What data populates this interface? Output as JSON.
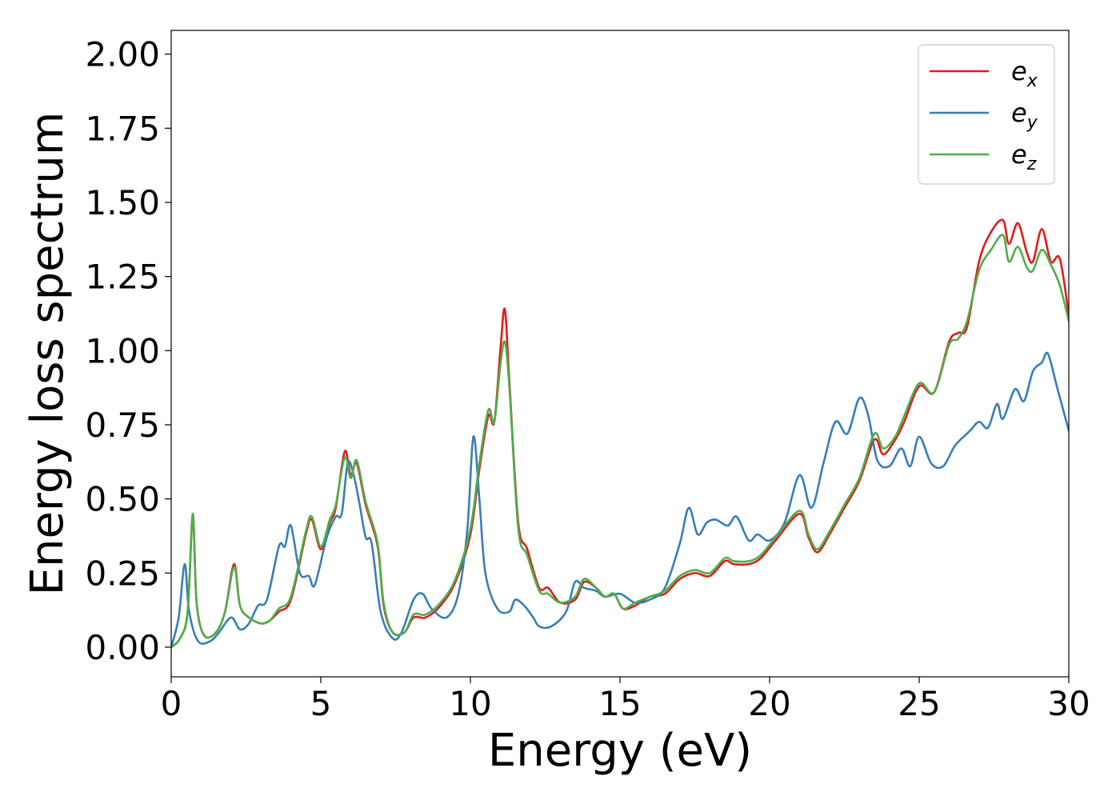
{
  "chart_data": {
    "type": "line",
    "title": "",
    "xlabel": "Energy (eV)",
    "ylabel": "Energy loss spectrum",
    "xlim": [
      0,
      30
    ],
    "ylim": [
      -0.1,
      2.08
    ],
    "x_ticks": [
      "0",
      "5",
      "10",
      "15",
      "20",
      "25",
      "30"
    ],
    "y_ticks": [
      "0.00",
      "0.25",
      "0.50",
      "0.75",
      "1.00",
      "1.25",
      "1.50",
      "1.75",
      "2.00"
    ],
    "grid": false,
    "legend_position": "top-right",
    "series": [
      {
        "name": "e",
        "sub": "x",
        "color": "#e41a1c",
        "points": [
          [
            0,
            0
          ],
          [
            0.3,
            0.03
          ],
          [
            0.55,
            0.12
          ],
          [
            0.72,
            0.44
          ],
          [
            0.85,
            0.15
          ],
          [
            1.1,
            0.04
          ],
          [
            1.5,
            0.05
          ],
          [
            1.8,
            0.12
          ],
          [
            2.1,
            0.28
          ],
          [
            2.3,
            0.14
          ],
          [
            2.6,
            0.1
          ],
          [
            3,
            0.08
          ],
          [
            3.3,
            0.09
          ],
          [
            3.6,
            0.12
          ],
          [
            4,
            0.16
          ],
          [
            4.5,
            0.38
          ],
          [
            4.7,
            0.43
          ],
          [
            5,
            0.33
          ],
          [
            5.3,
            0.42
          ],
          [
            5.5,
            0.47
          ],
          [
            5.8,
            0.66
          ],
          [
            6,
            0.58
          ],
          [
            6.2,
            0.62
          ],
          [
            6.5,
            0.48
          ],
          [
            6.9,
            0.34
          ],
          [
            7.1,
            0.14
          ],
          [
            7.4,
            0.05
          ],
          [
            7.8,
            0.05
          ],
          [
            8.1,
            0.1
          ],
          [
            8.5,
            0.1
          ],
          [
            9,
            0.14
          ],
          [
            9.5,
            0.22
          ],
          [
            10,
            0.38
          ],
          [
            10.3,
            0.6
          ],
          [
            10.6,
            0.78
          ],
          [
            10.8,
            0.76
          ],
          [
            11,
            1.0
          ],
          [
            11.15,
            1.14
          ],
          [
            11.3,
            0.9
          ],
          [
            11.6,
            0.42
          ],
          [
            11.9,
            0.33
          ],
          [
            12.3,
            0.2
          ],
          [
            12.6,
            0.2
          ],
          [
            13,
            0.15
          ],
          [
            13.5,
            0.16
          ],
          [
            13.8,
            0.22
          ],
          [
            14.2,
            0.2
          ],
          [
            14.5,
            0.17
          ],
          [
            14.8,
            0.18
          ],
          [
            15.1,
            0.13
          ],
          [
            15.5,
            0.14
          ],
          [
            16,
            0.17
          ],
          [
            16.5,
            0.18
          ],
          [
            17,
            0.23
          ],
          [
            17.5,
            0.25
          ],
          [
            18,
            0.24
          ],
          [
            18.5,
            0.29
          ],
          [
            18.8,
            0.28
          ],
          [
            19.3,
            0.28
          ],
          [
            19.7,
            0.3
          ],
          [
            20.2,
            0.36
          ],
          [
            21,
            0.45
          ],
          [
            21.3,
            0.37
          ],
          [
            21.6,
            0.32
          ],
          [
            22,
            0.38
          ],
          [
            22.5,
            0.47
          ],
          [
            23,
            0.56
          ],
          [
            23.5,
            0.7
          ],
          [
            23.8,
            0.65
          ],
          [
            24.2,
            0.7
          ],
          [
            24.5,
            0.76
          ],
          [
            25,
            0.88
          ],
          [
            25.5,
            0.86
          ],
          [
            26,
            1.03
          ],
          [
            26.3,
            1.06
          ],
          [
            26.6,
            1.08
          ],
          [
            27,
            1.3
          ],
          [
            27.4,
            1.4
          ],
          [
            27.8,
            1.44
          ],
          [
            28,
            1.36
          ],
          [
            28.3,
            1.43
          ],
          [
            28.6,
            1.33
          ],
          [
            28.8,
            1.3
          ],
          [
            29.1,
            1.41
          ],
          [
            29.4,
            1.3
          ],
          [
            29.7,
            1.31
          ],
          [
            30,
            1.12
          ]
        ]
      },
      {
        "name": "e",
        "sub": "y",
        "color": "#377eb8",
        "points": [
          [
            0,
            0
          ],
          [
            0.25,
            0.1
          ],
          [
            0.45,
            0.28
          ],
          [
            0.6,
            0.12
          ],
          [
            0.9,
            0.02
          ],
          [
            1.3,
            0.02
          ],
          [
            1.6,
            0.05
          ],
          [
            2,
            0.1
          ],
          [
            2.3,
            0.06
          ],
          [
            2.6,
            0.08
          ],
          [
            2.9,
            0.14
          ],
          [
            3.2,
            0.16
          ],
          [
            3.6,
            0.34
          ],
          [
            3.8,
            0.34
          ],
          [
            4,
            0.41
          ],
          [
            4.3,
            0.25
          ],
          [
            4.6,
            0.24
          ],
          [
            4.8,
            0.21
          ],
          [
            5.2,
            0.37
          ],
          [
            5.5,
            0.44
          ],
          [
            5.7,
            0.45
          ],
          [
            5.9,
            0.62
          ],
          [
            6.1,
            0.58
          ],
          [
            6.3,
            0.48
          ],
          [
            6.5,
            0.37
          ],
          [
            6.7,
            0.35
          ],
          [
            7,
            0.12
          ],
          [
            7.4,
            0.03
          ],
          [
            7.7,
            0.05
          ],
          [
            8.1,
            0.16
          ],
          [
            8.4,
            0.18
          ],
          [
            8.7,
            0.13
          ],
          [
            9.2,
            0.1
          ],
          [
            9.6,
            0.18
          ],
          [
            9.9,
            0.4
          ],
          [
            10.1,
            0.71
          ],
          [
            10.3,
            0.5
          ],
          [
            10.5,
            0.25
          ],
          [
            10.9,
            0.13
          ],
          [
            11.3,
            0.12
          ],
          [
            11.5,
            0.16
          ],
          [
            11.8,
            0.14
          ],
          [
            12.1,
            0.1
          ],
          [
            12.3,
            0.07
          ],
          [
            12.7,
            0.07
          ],
          [
            13.2,
            0.12
          ],
          [
            13.5,
            0.22
          ],
          [
            13.8,
            0.2
          ],
          [
            14.2,
            0.19
          ],
          [
            14.5,
            0.17
          ],
          [
            15,
            0.18
          ],
          [
            15.5,
            0.15
          ],
          [
            16,
            0.16
          ],
          [
            16.5,
            0.2
          ],
          [
            17,
            0.35
          ],
          [
            17.3,
            0.47
          ],
          [
            17.6,
            0.38
          ],
          [
            17.9,
            0.42
          ],
          [
            18.2,
            0.43
          ],
          [
            18.6,
            0.41
          ],
          [
            18.9,
            0.44
          ],
          [
            19.3,
            0.36
          ],
          [
            19.6,
            0.38
          ],
          [
            20,
            0.36
          ],
          [
            20.5,
            0.42
          ],
          [
            21,
            0.58
          ],
          [
            21.4,
            0.47
          ],
          [
            21.8,
            0.62
          ],
          [
            22.2,
            0.76
          ],
          [
            22.6,
            0.72
          ],
          [
            23,
            0.84
          ],
          [
            23.3,
            0.78
          ],
          [
            23.6,
            0.63
          ],
          [
            24,
            0.61
          ],
          [
            24.4,
            0.67
          ],
          [
            24.7,
            0.61
          ],
          [
            25,
            0.71
          ],
          [
            25.4,
            0.62
          ],
          [
            25.8,
            0.61
          ],
          [
            26.2,
            0.68
          ],
          [
            26.7,
            0.73
          ],
          [
            27,
            0.76
          ],
          [
            27.3,
            0.74
          ],
          [
            27.6,
            0.82
          ],
          [
            27.8,
            0.77
          ],
          [
            28.2,
            0.87
          ],
          [
            28.5,
            0.83
          ],
          [
            28.8,
            0.93
          ],
          [
            29.1,
            0.96
          ],
          [
            29.3,
            0.99
          ],
          [
            29.6,
            0.88
          ],
          [
            30,
            0.73
          ]
        ]
      },
      {
        "name": "e",
        "sub": "z",
        "color": "#4daf4a",
        "points": [
          [
            0,
            0
          ],
          [
            0.3,
            0.03
          ],
          [
            0.55,
            0.12
          ],
          [
            0.72,
            0.45
          ],
          [
            0.85,
            0.15
          ],
          [
            1.1,
            0.04
          ],
          [
            1.5,
            0.05
          ],
          [
            1.8,
            0.12
          ],
          [
            2.1,
            0.27
          ],
          [
            2.3,
            0.14
          ],
          [
            2.6,
            0.1
          ],
          [
            3,
            0.08
          ],
          [
            3.3,
            0.09
          ],
          [
            3.6,
            0.13
          ],
          [
            4,
            0.17
          ],
          [
            4.5,
            0.39
          ],
          [
            4.7,
            0.44
          ],
          [
            5,
            0.34
          ],
          [
            5.3,
            0.43
          ],
          [
            5.5,
            0.48
          ],
          [
            5.8,
            0.64
          ],
          [
            6,
            0.57
          ],
          [
            6.2,
            0.63
          ],
          [
            6.5,
            0.49
          ],
          [
            6.9,
            0.35
          ],
          [
            7.1,
            0.15
          ],
          [
            7.4,
            0.05
          ],
          [
            7.8,
            0.05
          ],
          [
            8.1,
            0.11
          ],
          [
            8.5,
            0.11
          ],
          [
            9,
            0.15
          ],
          [
            9.5,
            0.23
          ],
          [
            10,
            0.4
          ],
          [
            10.3,
            0.62
          ],
          [
            10.6,
            0.8
          ],
          [
            10.8,
            0.76
          ],
          [
            11,
            0.95
          ],
          [
            11.15,
            1.03
          ],
          [
            11.3,
            0.88
          ],
          [
            11.6,
            0.4
          ],
          [
            11.9,
            0.31
          ],
          [
            12.3,
            0.19
          ],
          [
            12.6,
            0.18
          ],
          [
            13,
            0.15
          ],
          [
            13.5,
            0.17
          ],
          [
            13.8,
            0.23
          ],
          [
            14.2,
            0.2
          ],
          [
            14.5,
            0.17
          ],
          [
            14.8,
            0.18
          ],
          [
            15.1,
            0.13
          ],
          [
            15.5,
            0.15
          ],
          [
            16,
            0.17
          ],
          [
            16.5,
            0.19
          ],
          [
            17,
            0.24
          ],
          [
            17.5,
            0.26
          ],
          [
            18,
            0.25
          ],
          [
            18.5,
            0.3
          ],
          [
            18.8,
            0.29
          ],
          [
            19.3,
            0.29
          ],
          [
            19.7,
            0.31
          ],
          [
            20.2,
            0.37
          ],
          [
            21,
            0.46
          ],
          [
            21.3,
            0.38
          ],
          [
            21.6,
            0.33
          ],
          [
            22,
            0.39
          ],
          [
            22.5,
            0.48
          ],
          [
            23,
            0.57
          ],
          [
            23.5,
            0.72
          ],
          [
            23.8,
            0.67
          ],
          [
            24.2,
            0.71
          ],
          [
            24.5,
            0.78
          ],
          [
            25,
            0.89
          ],
          [
            25.5,
            0.86
          ],
          [
            26,
            1.02
          ],
          [
            26.3,
            1.04
          ],
          [
            26.6,
            1.1
          ],
          [
            27,
            1.27
          ],
          [
            27.4,
            1.34
          ],
          [
            27.8,
            1.39
          ],
          [
            28,
            1.3
          ],
          [
            28.3,
            1.35
          ],
          [
            28.6,
            1.28
          ],
          [
            28.8,
            1.27
          ],
          [
            29.1,
            1.34
          ],
          [
            29.4,
            1.29
          ],
          [
            29.7,
            1.22
          ],
          [
            30,
            1.1
          ]
        ]
      }
    ]
  }
}
